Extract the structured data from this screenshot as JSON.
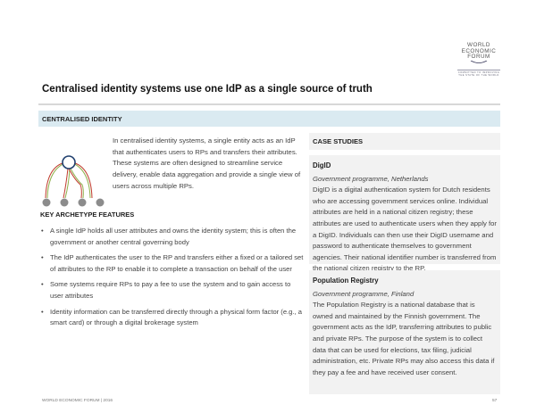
{
  "logo": {
    "line1": "WORLD",
    "line2": "ECONOMIC",
    "line3": "FORUM",
    "tagline": "COMMITTED TO IMPROVING THE STATE OF THE WORLD"
  },
  "title": "Centralised identity systems use one IdP as a single source of truth",
  "section_label": "CENTRALISED IDENTITY",
  "intro": "In centralised identity systems, a single entity acts as an IdP that authenticates users to RPs and transfers their attributes. These systems are often designed to streamline service delivery, enable data aggregation and provide a single view of users across multiple RPs.",
  "features": {
    "heading": "KEY ARCHETYPE FEATURES",
    "items": [
      "A single IdP holds all user attributes and owns the identity system; this is often the government or another central governing body",
      "The IdP authenticates the user to the RP and transfers either a fixed or a tailored set of attributes to the RP to enable it to complete a transaction on behalf of the user",
      "Some systems require RPs to pay a fee to use the system and to gain access to user attributes",
      "Identity information can be transferred directly through a physical form factor (e.g., a smart card) or through a digital brokerage system"
    ]
  },
  "case_studies": {
    "heading": "CASE STUDIES",
    "items": [
      {
        "name": "DigID",
        "subtitle": "Government programme, Netherlands",
        "body": "DigID is a digital authentication system for Dutch residents who are accessing government services online. Individual attributes are held in a national citizen registry; these attributes are used to authenticate users when they apply for a DigID. Individuals can then use their DigID username and password to authenticate themselves to government agencies. Their national identifier number is transferred from the national citizen registry to the RP."
      },
      {
        "name": "Population Registry",
        "subtitle": "Government programme, Finland",
        "body": "The Population Registry is a national database that is owned and maintained by the Finnish government. The government acts as the IdP, transferring attributes to public and private RPs. The purpose of the system is to collect data that can be used for elections, tax filing, judicial administration, etc. Private RPs may also access this data if they pay a fee and have received user consent."
      }
    ]
  },
  "footer": "WORLD ECONOMIC FORUM | 2016",
  "page_number": "57",
  "colors": {
    "band": "#daeaf1",
    "idp_node": "#1f3f6e",
    "rp_node": "#8c8c8c",
    "arrow_red": "#c0392b",
    "arrow_green": "#8db04a"
  }
}
